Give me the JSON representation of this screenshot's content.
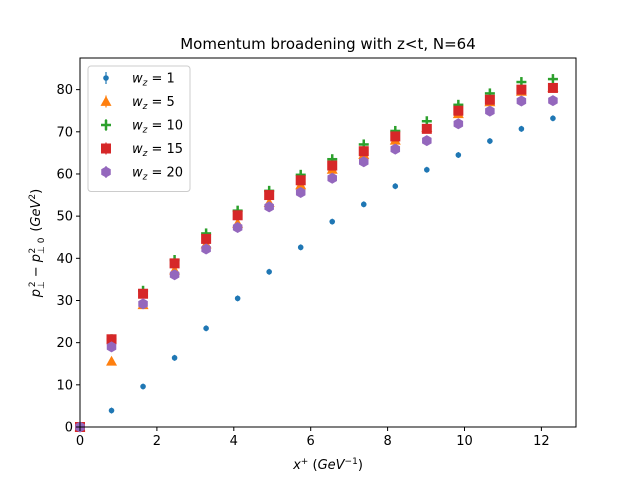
{
  "chart_data": {
    "type": "scatter",
    "title": "Momentum broadening with z<t, N=64",
    "xlabel": "x⁺ (GeV⁻¹)",
    "ylabel": "p⊥² − p⊥,0² (GeV²)",
    "xlim": [
      0,
      12.9
    ],
    "ylim": [
      0,
      87.5
    ],
    "xticks": [
      0,
      2,
      4,
      6,
      8,
      10,
      12
    ],
    "yticks": [
      0,
      10,
      20,
      30,
      40,
      50,
      60,
      70,
      80
    ],
    "grid": false,
    "legend_position": "top-left",
    "series": [
      {
        "name": "w_z = 1",
        "color": "#1f77b4",
        "marker": "circle",
        "x": [
          0,
          0.82,
          1.64,
          2.46,
          3.28,
          4.1,
          4.92,
          5.74,
          6.56,
          7.38,
          8.2,
          9.02,
          9.84,
          10.66,
          11.48,
          12.3
        ],
        "y": [
          0,
          3.9,
          9.6,
          16.4,
          23.4,
          30.5,
          36.8,
          42.6,
          48.7,
          52.8,
          57.1,
          61.0,
          64.5,
          67.8,
          70.7,
          73.2
        ]
      },
      {
        "name": "w_z = 5",
        "color": "#ff7f0e",
        "marker": "triangle",
        "x": [
          0,
          0.82,
          1.64,
          2.46,
          3.28,
          4.1,
          4.92,
          5.74,
          6.56,
          7.38,
          8.2,
          9.02,
          9.84,
          10.66,
          11.48,
          12.3
        ],
        "y": [
          0,
          15.6,
          29.0,
          37.2,
          43.4,
          48.3,
          53.2,
          57.4,
          61.1,
          64.6,
          68.0,
          71.0,
          74.3,
          77.1,
          79.6,
          80.5
        ]
      },
      {
        "name": "w_z = 10",
        "color": "#2ca02c",
        "marker": "plus",
        "x": [
          0,
          0.82,
          1.64,
          2.46,
          3.28,
          4.1,
          4.92,
          5.74,
          6.56,
          7.38,
          8.2,
          9.02,
          9.84,
          10.66,
          11.48,
          12.3
        ],
        "y": [
          0,
          20.8,
          32.3,
          39.6,
          45.9,
          51.3,
          56.0,
          59.8,
          63.5,
          67.0,
          70.2,
          72.5,
          76.4,
          79.1,
          81.8,
          82.5
        ]
      },
      {
        "name": "w_z = 15",
        "color": "#d62728",
        "marker": "square",
        "x": [
          0,
          0.82,
          1.64,
          2.46,
          3.28,
          4.1,
          4.92,
          5.74,
          6.56,
          7.38,
          8.2,
          9.02,
          9.84,
          10.66,
          11.48,
          12.3
        ],
        "y": [
          0,
          20.8,
          31.6,
          38.8,
          44.6,
          50.2,
          55.0,
          58.5,
          62.0,
          65.4,
          68.9,
          70.7,
          75.0,
          77.6,
          80.0,
          80.4
        ]
      },
      {
        "name": "w_z = 20",
        "color": "#9467bd",
        "marker": "hexagon",
        "x": [
          0,
          0.82,
          1.64,
          2.46,
          3.28,
          4.1,
          4.92,
          5.74,
          6.56,
          7.38,
          8.2,
          9.02,
          9.84,
          10.66,
          11.48,
          12.3
        ],
        "y": [
          0,
          19.0,
          29.2,
          36.1,
          42.2,
          47.3,
          52.2,
          55.6,
          59.0,
          62.9,
          65.9,
          67.9,
          71.9,
          74.9,
          77.3,
          77.4
        ]
      }
    ]
  }
}
